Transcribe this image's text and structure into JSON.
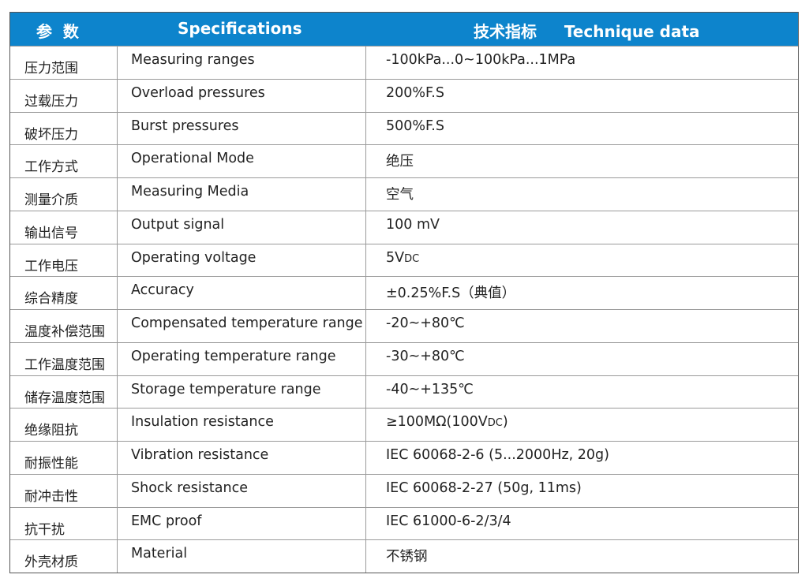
{
  "header": {
    "col1": "参  数",
    "col2": "Specifications",
    "col3": "技术指标     Technique data",
    "color": "#0d84cc"
  },
  "rows": [
    {
      "cn": "压力范围",
      "en": "Measuring ranges",
      "value": [
        {
          "t": "-100kPa...0~100kPa...1MPa"
        }
      ]
    },
    {
      "cn": "过载压力",
      "en": "Overload pressures",
      "value": [
        {
          "t": "200%F.S"
        }
      ]
    },
    {
      "cn": "破坏压力",
      "en": "Burst pressures",
      "value": [
        {
          "t": "500%F.S"
        }
      ]
    },
    {
      "cn": "工作方式",
      "en": "Operational Mode",
      "value": [
        {
          "t": "绝压"
        }
      ]
    },
    {
      "cn": "测量介质",
      "en": "Measuring Media",
      "value": [
        {
          "t": "空气"
        }
      ]
    },
    {
      "cn": "输出信号",
      "en": "Output signal",
      "value": [
        {
          "t": "100 mV"
        }
      ]
    },
    {
      "cn": "工作电压",
      "en": "Operating voltage",
      "value": [
        {
          "t": "5V"
        },
        {
          "t": "DC",
          "small": true
        }
      ]
    },
    {
      "cn": "综合精度",
      "en": "Accuracy",
      "value": [
        {
          "t": "±0.25%F.S（典值）"
        }
      ]
    },
    {
      "cn": "温度补偿范围",
      "en": "Compensated temperature range",
      "value": [
        {
          "t": "-20~+80℃"
        }
      ]
    },
    {
      "cn": "工作温度范围",
      "en": "Operating temperature range",
      "value": [
        {
          "t": "-30~+80℃"
        }
      ]
    },
    {
      "cn": "储存温度范围",
      "en": "Storage temperature range",
      "value": [
        {
          "t": "-40~+135℃"
        }
      ]
    },
    {
      "cn": "绝缘阻抗",
      "en": "Insulation resistance",
      "value": [
        {
          "t": "≥100MΩ(100V"
        },
        {
          "t": "DC",
          "small": true
        },
        {
          "t": ")"
        }
      ]
    },
    {
      "cn": "耐振性能",
      "en": "Vibration resistance",
      "value": [
        {
          "t": "IEC 60068-2-6 (5...2000Hz, 20g)"
        }
      ]
    },
    {
      "cn": "耐冲击性",
      "en": "Shock resistance",
      "value": [
        {
          "t": "IEC 60068-2-27 (50g, 11ms)"
        }
      ]
    },
    {
      "cn": "抗干扰",
      "en": "EMC proof",
      "value": [
        {
          "t": "IEC 61000-6-2/3/4"
        }
      ]
    },
    {
      "cn": "外壳材质",
      "en": "Material",
      "value": [
        {
          "t": "不锈钢"
        }
      ]
    }
  ]
}
